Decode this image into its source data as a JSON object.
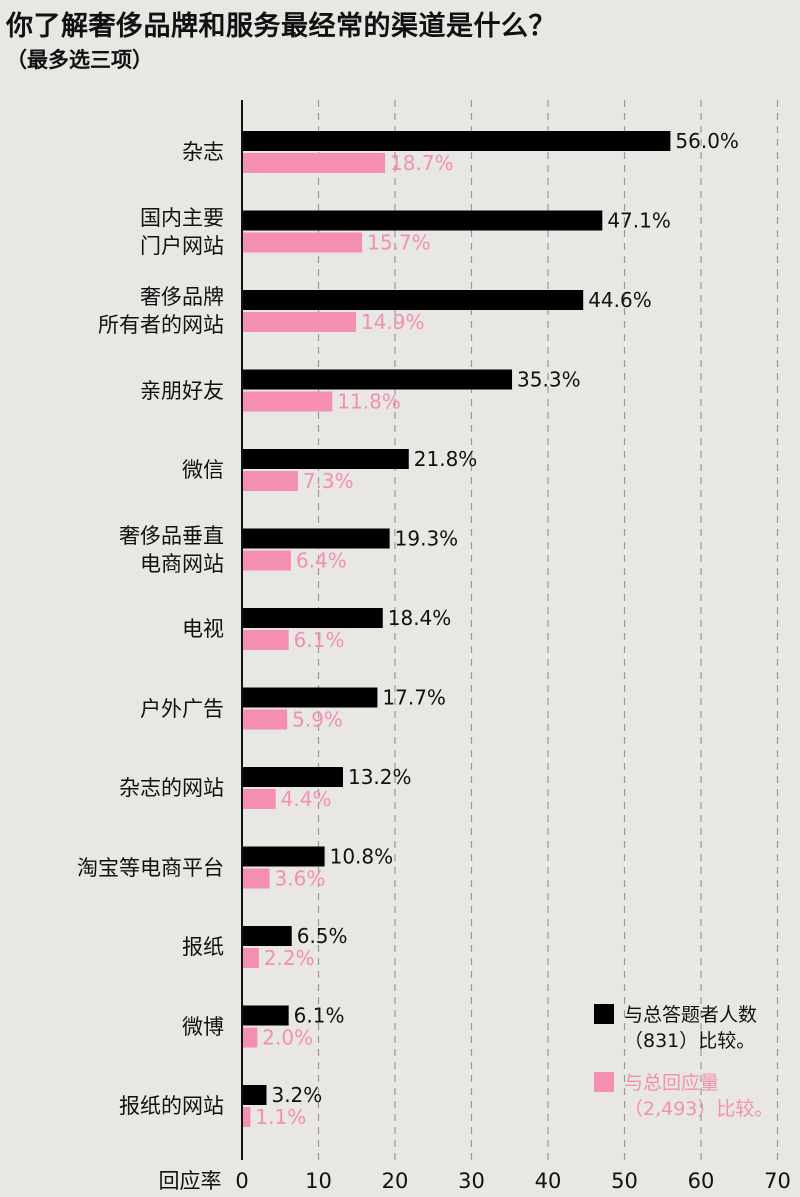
{
  "title": "你了解奢侈品牌和服务最经常的渠道是什么？",
  "subtitle": "（最多选三项）",
  "colors": {
    "respondents": "#000000",
    "responses": "#f48fb1",
    "grid": "#999999",
    "background": "#e8e7e3"
  },
  "chart_data": {
    "type": "bar",
    "orientation": "horizontal",
    "categories": [
      [
        "杂志"
      ],
      [
        "国内主要",
        "门户网站"
      ],
      [
        "奢侈品牌",
        "所有者的网站"
      ],
      [
        "亲朋好友"
      ],
      [
        "微信"
      ],
      [
        "奢侈品垂直",
        "电商网站"
      ],
      [
        "电视"
      ],
      [
        "户外广告"
      ],
      [
        "杂志的网站"
      ],
      [
        "淘宝等电商平台"
      ],
      [
        "报纸"
      ],
      [
        "微博"
      ],
      [
        "报纸的网站"
      ]
    ],
    "series": [
      {
        "name": "与总答题者人数（831）比较。",
        "legend_lines": [
          "与总答题者人数",
          "（831）比较。"
        ],
        "color": "#000000",
        "values": [
          56.0,
          47.1,
          44.6,
          35.3,
          21.8,
          19.3,
          18.4,
          17.7,
          13.2,
          10.8,
          6.5,
          6.1,
          3.2
        ],
        "labels": [
          "56.0%",
          "47.1%",
          "44.6%",
          "35.3%",
          "21.8%",
          "19.3%",
          "18.4%",
          "17.7%",
          "13.2%",
          "10.8%",
          "6.5%",
          "6.1%",
          "3.2%"
        ]
      },
      {
        "name": "与总回应量（2,493）比较。",
        "legend_lines": [
          "与总回应量",
          "（2,493）比较。"
        ],
        "color": "#f48fb1",
        "values": [
          18.7,
          15.7,
          14.9,
          11.8,
          7.3,
          6.4,
          6.1,
          5.9,
          4.4,
          3.6,
          2.2,
          2.0,
          1.1
        ],
        "labels": [
          "18.7%",
          "15.7%",
          "14.9%",
          "11.8%",
          "7.3%",
          "6.4%",
          "6.1%",
          "5.9%",
          "4.4%",
          "3.6%",
          "2.2%",
          "2.0%",
          "1.1%"
        ]
      }
    ],
    "xlabel": "回应率",
    "xlim": [
      0,
      70
    ],
    "xticks": [
      "0",
      "10",
      "20",
      "30",
      "40",
      "50",
      "60",
      "70"
    ],
    "grid": "vertical dashed",
    "legend_position": "bottom-right"
  }
}
